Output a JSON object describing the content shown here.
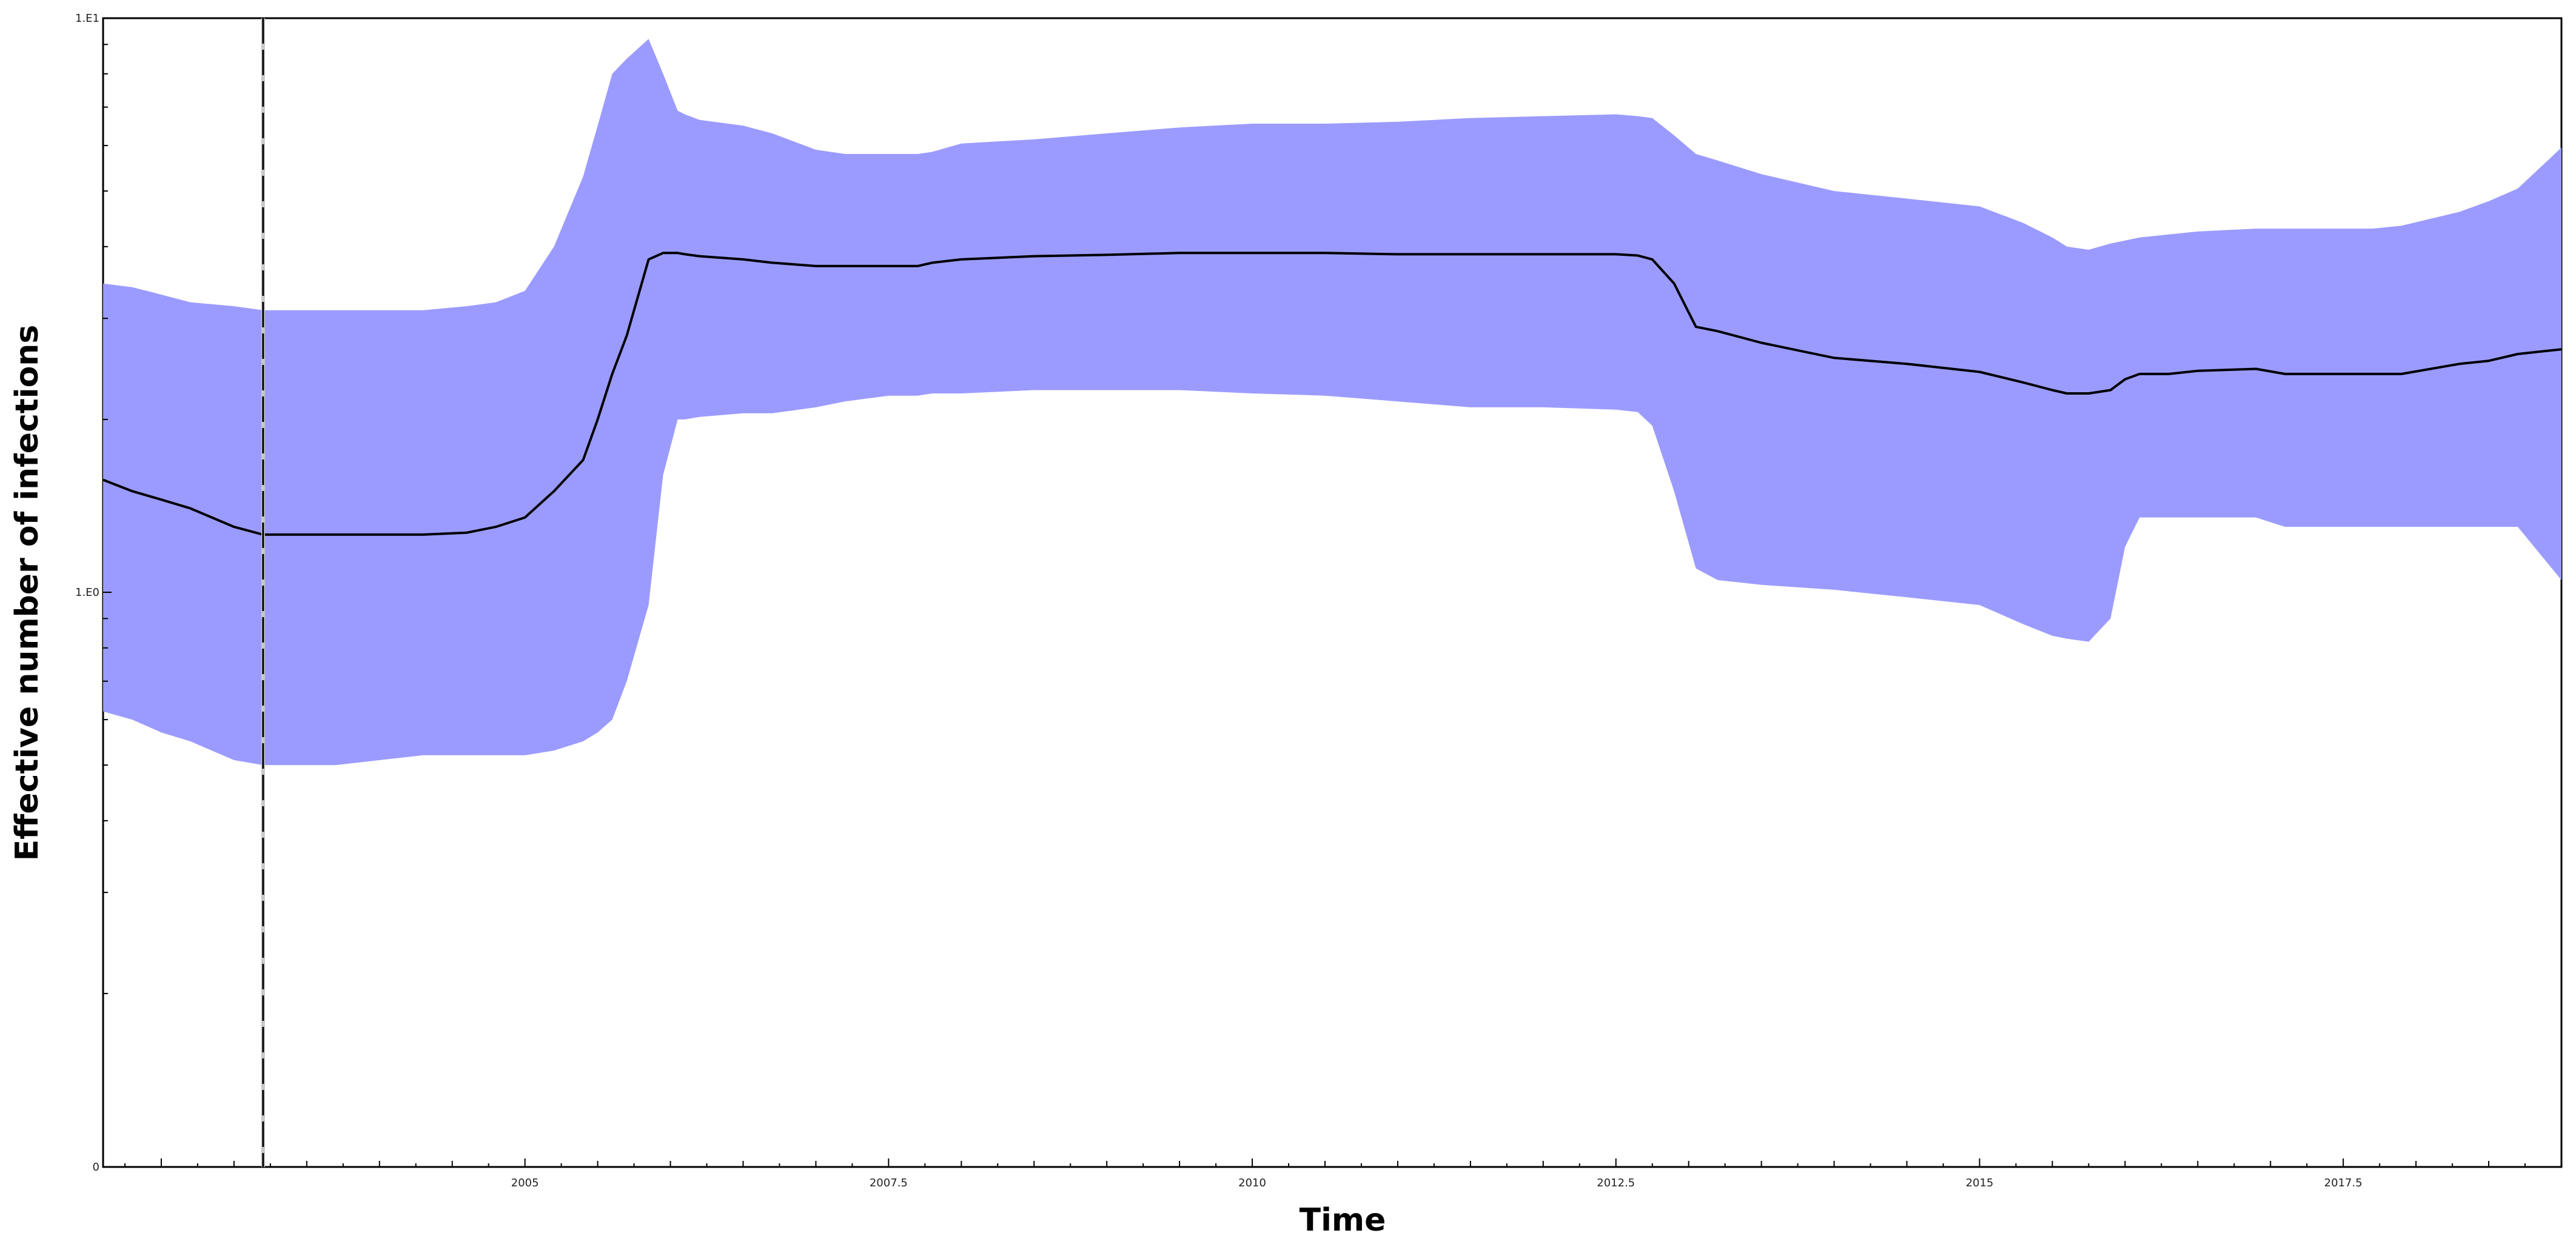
{
  "chart_data": {
    "type": "area",
    "xlabel": "Time",
    "ylabel": "Effective number of infections",
    "x_scale": "linear",
    "y_scale": "log (0 at axis bottom)",
    "xlim": [
      2002.1,
      2019.0
    ],
    "y_ticks": [
      {
        "value": 0,
        "label": "0"
      },
      {
        "value": 1,
        "label": "1.E0"
      },
      {
        "value": 10,
        "label": "1.E1"
      }
    ],
    "x_ticks": [
      {
        "value": 2005,
        "label": "2005"
      },
      {
        "value": 2007.5,
        "label": "2007.5"
      },
      {
        "value": 2010,
        "label": "2010"
      },
      {
        "value": 2012.5,
        "label": "2012.5"
      },
      {
        "value": 2015,
        "label": "2015"
      },
      {
        "value": 2017.5,
        "label": "2017.5"
      }
    ],
    "reference_line_x": 2003.2,
    "grid": false,
    "legend": "none",
    "colors": {
      "band": "#9b9bff",
      "median": "#000000",
      "axis": "#000000",
      "reference_line": "#000000"
    },
    "series": [
      {
        "x": [
          2002.1,
          2002.3,
          2002.5,
          2002.7,
          2003.0,
          2003.2,
          2003.4,
          2003.7,
          2004.0,
          2004.3,
          2004.6,
          2004.8,
          2005.0,
          2005.2,
          2005.4,
          2005.5,
          2005.6,
          2005.7,
          2005.85,
          2005.95,
          2006.05,
          2006.1,
          2006.2,
          2006.5,
          2006.7,
          2007.0,
          2007.2,
          2007.5,
          2007.7,
          2007.8,
          2008.0,
          2008.5,
          2009.0,
          2009.5,
          2010.0,
          2010.5,
          2011.0,
          2011.5,
          2012.0,
          2012.5,
          2012.65,
          2012.75,
          2012.9,
          2013.05,
          2013.2,
          2013.5,
          2014.0,
          2014.5,
          2015.0,
          2015.3,
          2015.5,
          2015.6,
          2015.75,
          2015.9,
          2016.0,
          2016.1,
          2016.3,
          2016.5,
          2016.9,
          2017.1,
          2017.4,
          2017.7,
          2017.9,
          2018.3,
          2018.5,
          2018.7,
          2019.0
        ],
        "values": [
          1.57,
          1.5,
          1.45,
          1.4,
          1.3,
          1.26,
          1.26,
          1.26,
          1.26,
          1.26,
          1.27,
          1.3,
          1.35,
          1.5,
          1.7,
          2.0,
          2.4,
          2.8,
          3.8,
          3.9,
          3.9,
          3.88,
          3.85,
          3.8,
          3.75,
          3.7,
          3.7,
          3.7,
          3.7,
          3.75,
          3.8,
          3.85,
          3.87,
          3.9,
          3.9,
          3.9,
          3.88,
          3.88,
          3.88,
          3.88,
          3.86,
          3.8,
          3.45,
          2.9,
          2.85,
          2.72,
          2.56,
          2.5,
          2.42,
          2.32,
          2.25,
          2.22,
          2.22,
          2.25,
          2.35,
          2.4,
          2.4,
          2.43,
          2.45,
          2.4,
          2.4,
          2.4,
          2.4,
          2.5,
          2.53,
          2.6,
          2.65
        ]
      },
      {
        "x": [
          2002.1,
          2002.3,
          2002.5,
          2002.7,
          2003.0,
          2003.2,
          2003.4,
          2003.7,
          2004.0,
          2004.3,
          2004.6,
          2004.8,
          2005.0,
          2005.2,
          2005.4,
          2005.5,
          2005.6,
          2005.7,
          2005.85,
          2005.95,
          2006.05,
          2006.1,
          2006.2,
          2006.5,
          2006.7,
          2007.0,
          2007.2,
          2007.5,
          2007.7,
          2007.8,
          2008.0,
          2008.5,
          2009.0,
          2009.5,
          2010.0,
          2010.5,
          2011.0,
          2011.5,
          2012.0,
          2012.5,
          2012.65,
          2012.75,
          2012.9,
          2013.05,
          2013.2,
          2013.5,
          2014.0,
          2014.5,
          2015.0,
          2015.3,
          2015.5,
          2015.6,
          2015.75,
          2015.9,
          2016.0,
          2016.1,
          2016.3,
          2016.5,
          2016.9,
          2017.1,
          2017.4,
          2017.7,
          2017.9,
          2018.3,
          2018.5,
          2018.7,
          2019.0
        ],
        "values": [
          0.62,
          0.6,
          0.57,
          0.55,
          0.51,
          0.5,
          0.5,
          0.5,
          0.51,
          0.52,
          0.52,
          0.52,
          0.52,
          0.53,
          0.55,
          0.57,
          0.6,
          0.7,
          0.95,
          1.6,
          2.0,
          2.0,
          2.02,
          2.05,
          2.05,
          2.1,
          2.15,
          2.2,
          2.2,
          2.22,
          2.22,
          2.25,
          2.25,
          2.25,
          2.22,
          2.2,
          2.15,
          2.1,
          2.1,
          2.08,
          2.06,
          1.95,
          1.5,
          1.1,
          1.05,
          1.03,
          1.01,
          0.98,
          0.95,
          0.88,
          0.84,
          0.83,
          0.82,
          0.9,
          1.2,
          1.35,
          1.35,
          1.35,
          1.35,
          1.3,
          1.3,
          1.3,
          1.3,
          1.3,
          1.3,
          1.3,
          1.05
        ]
      },
      {
        "x": [
          2002.1,
          2002.3,
          2002.5,
          2002.7,
          2003.0,
          2003.2,
          2003.4,
          2003.7,
          2004.0,
          2004.3,
          2004.6,
          2004.8,
          2005.0,
          2005.2,
          2005.4,
          2005.5,
          2005.6,
          2005.7,
          2005.85,
          2005.95,
          2006.05,
          2006.1,
          2006.2,
          2006.5,
          2006.7,
          2007.0,
          2007.2,
          2007.5,
          2007.7,
          2007.8,
          2008.0,
          2008.5,
          2009.0,
          2009.5,
          2010.0,
          2010.5,
          2011.0,
          2011.5,
          2012.0,
          2012.5,
          2012.65,
          2012.75,
          2012.9,
          2013.05,
          2013.2,
          2013.5,
          2014.0,
          2014.5,
          2015.0,
          2015.3,
          2015.5,
          2015.6,
          2015.75,
          2015.9,
          2016.0,
          2016.1,
          2016.3,
          2016.5,
          2016.9,
          2017.1,
          2017.4,
          2017.7,
          2017.9,
          2018.3,
          2018.5,
          2018.7,
          2019.0
        ],
        "values": [
          3.45,
          3.4,
          3.3,
          3.2,
          3.15,
          3.1,
          3.1,
          3.1,
          3.1,
          3.1,
          3.15,
          3.2,
          3.35,
          4.0,
          5.3,
          6.5,
          8.0,
          8.5,
          9.2,
          8.0,
          6.9,
          6.8,
          6.65,
          6.5,
          6.3,
          5.9,
          5.8,
          5.8,
          5.8,
          5.85,
          6.05,
          6.15,
          6.3,
          6.45,
          6.55,
          6.55,
          6.6,
          6.7,
          6.75,
          6.8,
          6.75,
          6.7,
          6.25,
          5.8,
          5.65,
          5.35,
          5.0,
          4.85,
          4.7,
          4.4,
          4.15,
          4.0,
          3.95,
          4.05,
          4.1,
          4.15,
          4.2,
          4.25,
          4.3,
          4.3,
          4.3,
          4.3,
          4.35,
          4.6,
          4.8,
          5.05,
          5.95
        ]
      }
    ]
  }
}
